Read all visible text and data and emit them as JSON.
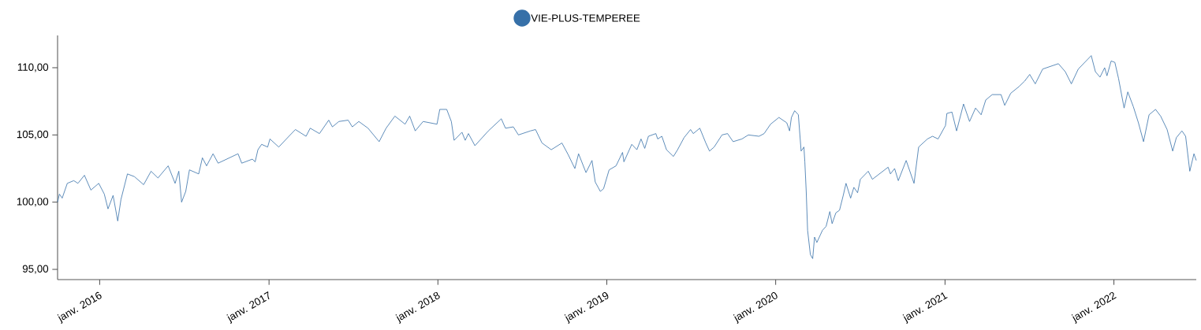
{
  "chart_data": {
    "type": "line",
    "legend": "top",
    "xlim": [
      "2015-10-02",
      "2022-06-28"
    ],
    "ylim": [
      94.24,
      112.4
    ],
    "xticks": [
      {
        "value": "2016-01-01",
        "label": "janv. 2016"
      },
      {
        "value": "2017-01-01",
        "label": "janv. 2017"
      },
      {
        "value": "2018-01-01",
        "label": "janv. 2018"
      },
      {
        "value": "2019-01-01",
        "label": "janv. 2019"
      },
      {
        "value": "2020-01-01",
        "label": "janv. 2020"
      },
      {
        "value": "2021-01-01",
        "label": "janv. 2021"
      },
      {
        "value": "2022-01-01",
        "label": "janv. 2022"
      }
    ],
    "yticks": [
      {
        "value": 95,
        "label": "95,00"
      },
      {
        "value": 100,
        "label": "100,00"
      },
      {
        "value": 105,
        "label": "105,00"
      },
      {
        "value": 110,
        "label": "110,00"
      }
    ],
    "series": [
      {
        "name": "VIE-PLUS-TEMPEREE",
        "color": "#3670a8",
        "x": [
          "2015-10-02",
          "2015-10-06",
          "2015-10-12",
          "2015-10-23",
          "2015-11-06",
          "2015-11-15",
          "2015-11-29",
          "2015-12-13",
          "2015-12-30",
          "2016-01-11",
          "2016-01-19",
          "2016-01-30",
          "2016-02-09",
          "2016-02-16",
          "2016-03-01",
          "2016-03-16",
          "2016-04-05",
          "2016-04-21",
          "2016-05-06",
          "2016-05-28",
          "2016-06-12",
          "2016-06-20",
          "2016-06-26",
          "2016-07-05",
          "2016-07-13",
          "2016-08-02",
          "2016-08-10",
          "2016-08-19",
          "2016-09-02",
          "2016-09-13",
          "2016-10-26",
          "2016-11-03",
          "2016-11-26",
          "2016-12-02",
          "2016-12-08",
          "2016-12-16",
          "2016-12-29",
          "2017-01-03",
          "2017-01-22",
          "2017-02-13",
          "2017-02-27",
          "2017-03-22",
          "2017-03-31",
          "2017-04-20",
          "2017-05-10",
          "2017-05-18",
          "2017-06-01",
          "2017-06-21",
          "2017-06-30",
          "2017-07-14",
          "2017-08-03",
          "2017-08-27",
          "2017-09-11",
          "2017-09-30",
          "2017-10-22",
          "2017-11-01",
          "2017-11-13",
          "2017-11-30",
          "2017-12-30",
          "2018-01-05",
          "2018-01-20",
          "2018-01-30",
          "2018-02-05",
          "2018-02-22",
          "2018-03-01",
          "2018-03-08",
          "2018-03-22",
          "2018-04-20",
          "2018-05-18",
          "2018-05-27",
          "2018-06-13",
          "2018-06-24",
          "2018-07-20",
          "2018-07-31",
          "2018-08-14",
          "2018-09-03",
          "2018-09-26",
          "2018-10-10",
          "2018-10-24",
          "2018-11-01",
          "2018-11-17",
          "2018-11-30",
          "2018-12-07",
          "2018-12-18",
          "2018-12-25",
          "2019-01-06",
          "2019-01-21",
          "2019-02-04",
          "2019-02-07",
          "2019-02-24",
          "2019-03-07",
          "2019-03-16",
          "2019-03-24",
          "2019-04-01",
          "2019-04-17",
          "2019-04-21",
          "2019-04-30",
          "2019-05-10",
          "2019-05-25",
          "2019-06-03",
          "2019-06-17",
          "2019-07-01",
          "2019-07-07",
          "2019-07-21",
          "2019-08-03",
          "2019-08-11",
          "2019-08-21",
          "2019-09-07",
          "2019-09-19",
          "2019-10-01",
          "2019-10-20",
          "2019-11-03",
          "2019-11-26",
          "2019-12-07",
          "2019-12-21",
          "2020-01-08",
          "2020-01-25",
          "2020-01-31",
          "2020-02-04",
          "2020-02-11",
          "2020-02-19",
          "2020-02-25",
          "2020-03-02",
          "2020-03-04",
          "2020-03-07",
          "2020-03-10",
          "2020-03-16",
          "2020-03-21",
          "2020-03-25",
          "2020-03-30",
          "2020-04-11",
          "2020-04-19",
          "2020-04-27",
          "2020-05-02",
          "2020-05-10",
          "2020-05-18",
          "2020-05-26",
          "2020-06-01",
          "2020-06-11",
          "2020-06-18",
          "2020-06-26",
          "2020-07-02",
          "2020-07-19",
          "2020-07-28",
          "2020-08-31",
          "2020-09-05",
          "2020-09-14",
          "2020-09-22",
          "2020-10-09",
          "2020-10-26",
          "2020-11-05",
          "2020-11-24",
          "2020-12-05",
          "2020-12-17",
          "2021-01-02",
          "2021-01-05",
          "2021-01-16",
          "2021-01-26",
          "2021-02-10",
          "2021-02-23",
          "2021-03-08",
          "2021-03-20",
          "2021-03-30",
          "2021-04-13",
          "2021-05-02",
          "2021-05-10",
          "2021-05-23",
          "2021-06-10",
          "2021-06-22",
          "2021-07-03",
          "2021-07-15",
          "2021-07-31",
          "2021-09-03",
          "2021-09-18",
          "2021-10-01",
          "2021-10-16",
          "2021-11-13",
          "2021-11-22",
          "2021-12-02",
          "2021-12-12",
          "2021-12-17",
          "2021-12-26",
          "2022-01-03",
          "2022-01-11",
          "2022-01-23",
          "2022-01-31",
          "2022-02-12",
          "2022-02-23",
          "2022-03-06",
          "2022-03-18",
          "2022-04-01",
          "2022-04-12",
          "2022-04-26",
          "2022-05-08",
          "2022-05-16",
          "2022-05-28",
          "2022-06-05",
          "2022-06-14",
          "2022-06-23",
          "2022-06-28"
        ],
        "values": [
          100.0,
          100.6,
          100.3,
          101.4,
          101.6,
          101.4,
          102.0,
          100.9,
          101.4,
          100.6,
          99.5,
          100.5,
          98.6,
          100.2,
          102.1,
          101.9,
          101.3,
          102.3,
          101.8,
          102.7,
          101.4,
          102.3,
          100.0,
          100.8,
          102.4,
          102.1,
          103.3,
          102.7,
          103.6,
          102.9,
          103.6,
          102.9,
          103.2,
          103.0,
          103.9,
          104.3,
          104.1,
          104.7,
          104.1,
          104.9,
          105.4,
          104.9,
          105.5,
          105.1,
          106.1,
          105.6,
          106.0,
          106.1,
          105.6,
          106.0,
          105.5,
          104.5,
          105.5,
          106.4,
          105.8,
          106.4,
          105.3,
          106.0,
          105.8,
          106.9,
          106.9,
          106.0,
          104.6,
          105.2,
          104.6,
          105.1,
          104.2,
          105.3,
          106.2,
          105.5,
          105.6,
          105.0,
          105.3,
          105.4,
          104.4,
          103.9,
          104.4,
          103.5,
          102.5,
          103.6,
          102.2,
          103.1,
          101.5,
          100.8,
          101.0,
          102.4,
          102.7,
          103.7,
          103.0,
          104.3,
          103.9,
          104.7,
          104.0,
          104.9,
          105.1,
          104.7,
          104.9,
          103.9,
          103.4,
          103.9,
          104.8,
          105.4,
          105.1,
          105.5,
          104.4,
          103.8,
          104.1,
          105.0,
          105.1,
          104.5,
          104.7,
          105.0,
          104.9,
          105.1,
          105.8,
          106.3,
          105.9,
          105.3,
          106.3,
          106.8,
          106.5,
          103.8,
          104.1,
          103.0,
          100.8,
          97.9,
          96.1,
          95.8,
          97.4,
          97.0,
          97.9,
          98.2,
          99.3,
          98.4,
          99.2,
          99.4,
          100.5,
          101.4,
          100.3,
          101.1,
          100.7,
          101.7,
          102.3,
          101.7,
          102.6,
          102.1,
          102.5,
          101.6,
          103.1,
          101.4,
          104.1,
          104.7,
          104.9,
          104.7,
          105.7,
          106.6,
          106.7,
          105.3,
          107.3,
          106.0,
          107.0,
          106.5,
          107.6,
          108.0,
          108.0,
          107.2,
          108.1,
          108.6,
          109.0,
          109.5,
          108.8,
          109.9,
          110.3,
          109.7,
          108.8,
          109.9,
          110.9,
          109.7,
          109.3,
          110.0,
          109.4,
          110.5,
          110.4,
          109.2,
          107.0,
          108.2,
          107.1,
          105.9,
          104.5,
          106.5,
          106.9,
          106.4,
          105.4,
          103.8,
          104.8,
          105.3,
          104.9,
          102.3,
          103.6,
          103.1
        ]
      }
    ]
  }
}
